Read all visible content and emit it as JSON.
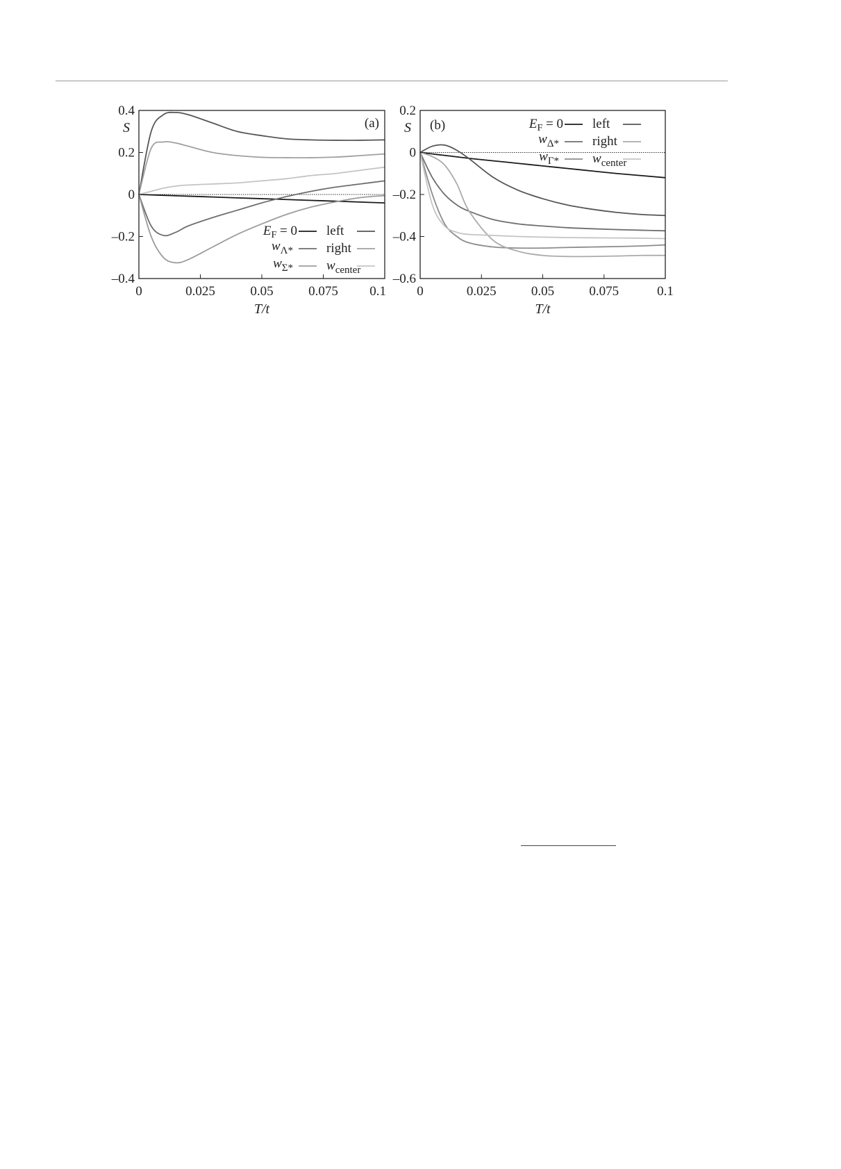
{
  "chart_data": [
    {
      "type": "line",
      "panel_label": "(a)",
      "xlabel": "T/t",
      "ylabel": "S",
      "xlim": [
        0,
        0.1
      ],
      "ylim": [
        -0.4,
        0.4
      ],
      "xticks": [
        "0",
        "0.025",
        "0.05",
        "0.075",
        "0.1"
      ],
      "yticks": [
        "0.4",
        "0.2",
        "0",
        "–0.2",
        "–0.4"
      ],
      "grid": false,
      "zero_line": "dotted",
      "legend_placement": "bottom-right",
      "x": [
        0,
        0.005,
        0.01,
        0.015,
        0.02,
        0.03,
        0.04,
        0.05,
        0.06,
        0.07,
        0.08,
        0.09,
        0.1
      ],
      "series": [
        {
          "name": "E_F = 0",
          "color": "#1a1a1a",
          "values": [
            0,
            -0.002,
            -0.004,
            -0.006,
            -0.008,
            -0.012,
            -0.016,
            -0.02,
            -0.024,
            -0.028,
            -0.032,
            -0.036,
            -0.04
          ]
        },
        {
          "name": "w_Λ*",
          "color": "#6e6e6e",
          "values": [
            0,
            -0.15,
            -0.195,
            -0.18,
            -0.15,
            -0.11,
            -0.075,
            -0.04,
            -0.01,
            0.015,
            0.035,
            0.05,
            0.065
          ]
        },
        {
          "name": "w_Σ*",
          "color": "#9c9c9c",
          "values": [
            0,
            -0.2,
            -0.3,
            -0.325,
            -0.31,
            -0.25,
            -0.19,
            -0.14,
            -0.095,
            -0.06,
            -0.035,
            -0.015,
            -0.005
          ]
        },
        {
          "name": "left",
          "color": "#555555",
          "values": [
            0,
            0.3,
            0.38,
            0.39,
            0.38,
            0.34,
            0.3,
            0.28,
            0.265,
            0.26,
            0.258,
            0.258,
            0.26
          ]
        },
        {
          "name": "right",
          "color": "#a0a0a0",
          "values": [
            0,
            0.22,
            0.25,
            0.245,
            0.23,
            0.2,
            0.185,
            0.177,
            0.175,
            0.175,
            0.178,
            0.185,
            0.193
          ]
        },
        {
          "name": "w_center",
          "color": "#c4c4c4",
          "values": [
            0,
            0.015,
            0.03,
            0.04,
            0.045,
            0.05,
            0.055,
            0.065,
            0.075,
            0.09,
            0.1,
            0.115,
            0.13
          ]
        }
      ]
    },
    {
      "type": "line",
      "panel_label": "(b)",
      "xlabel": "T/t",
      "ylabel": "S",
      "xlim": [
        0,
        0.1
      ],
      "ylim": [
        -0.6,
        0.2
      ],
      "xticks": [
        "0",
        "0.025",
        "0.05",
        "0.075",
        "0.1"
      ],
      "yticks": [
        "0.2",
        "0",
        "–0.2",
        "–0.4",
        "–0.6"
      ],
      "grid": false,
      "zero_line": "dotted",
      "legend_placement": "top-right",
      "x": [
        0,
        0.005,
        0.01,
        0.015,
        0.02,
        0.03,
        0.04,
        0.05,
        0.06,
        0.07,
        0.08,
        0.09,
        0.1
      ],
      "series": [
        {
          "name": "E_F = 0",
          "color": "#1a1a1a",
          "values": [
            0,
            -0.007,
            -0.014,
            -0.021,
            -0.028,
            -0.04,
            -0.052,
            -0.064,
            -0.076,
            -0.088,
            -0.1,
            -0.11,
            -0.12
          ]
        },
        {
          "name": "w_Δ*",
          "color": "#6e6e6e",
          "values": [
            0,
            -0.12,
            -0.2,
            -0.25,
            -0.28,
            -0.32,
            -0.34,
            -0.35,
            -0.358,
            -0.363,
            -0.367,
            -0.37,
            -0.373
          ]
        },
        {
          "name": "w_Γ*",
          "color": "#8c8c8c",
          "values": [
            0,
            -0.2,
            -0.34,
            -0.4,
            -0.43,
            -0.45,
            -0.455,
            -0.455,
            -0.452,
            -0.45,
            -0.448,
            -0.445,
            -0.44
          ]
        },
        {
          "name": "left",
          "color": "#555555",
          "values": [
            0,
            0.03,
            0.035,
            0.01,
            -0.03,
            -0.12,
            -0.18,
            -0.22,
            -0.25,
            -0.27,
            -0.285,
            -0.295,
            -0.3
          ]
        },
        {
          "name": "right",
          "color": "#aaaaaa",
          "values": [
            0,
            -0.02,
            -0.06,
            -0.15,
            -0.28,
            -0.42,
            -0.47,
            -0.49,
            -0.495,
            -0.495,
            -0.493,
            -0.49,
            -0.49
          ]
        },
        {
          "name": "w_center",
          "color": "#c4c4c4",
          "values": [
            0,
            -0.25,
            -0.35,
            -0.38,
            -0.39,
            -0.395,
            -0.4,
            -0.403,
            -0.405,
            -0.406,
            -0.407,
            -0.408,
            -0.41
          ]
        }
      ]
    }
  ]
}
